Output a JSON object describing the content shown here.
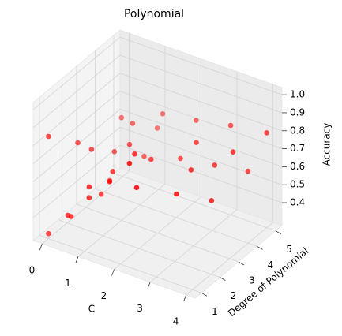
{
  "chart_data": {
    "type": "scatter3d",
    "title": "Polynomial",
    "x_label": "C",
    "y_label": "Degree of Polynomial",
    "z_label": "Accuracy",
    "color": "red",
    "x": [
      0,
      0,
      0.3,
      0.54,
      0.63,
      0.68,
      1.13,
      1.13,
      0.95,
      0.67,
      1.7,
      1.27,
      0.8,
      0.48,
      0.79,
      1.22,
      1.88,
      2.25,
      1.11,
      1.82,
      2.45,
      0.96,
      1.11,
      2.12,
      3.04,
      2.93,
      2.56,
      2.04,
      3.5,
      3.07,
      3.58,
      3.0,
      3.48,
      4.0
    ],
    "y": [
      1,
      1,
      2,
      1,
      1,
      2,
      1,
      1,
      2,
      3,
      1,
      2,
      3,
      4,
      4,
      3,
      2,
      1,
      4,
      3,
      1,
      5,
      5,
      4,
      2,
      3,
      4,
      5,
      3,
      4,
      4,
      5,
      5,
      5
    ],
    "z": [
      0.84,
      0.3,
      0.74,
      0.44,
      0.44,
      0.73,
      0.64,
      0.58,
      0.5,
      0.47,
      0.71,
      0.65,
      0.64,
      0.72,
      0.71,
      0.71,
      0.79,
      0.85,
      0.55,
      0.67,
      0.73,
      0.61,
      0.7,
      0.61,
      0.65,
      0.69,
      0.73,
      0.73,
      0.56,
      0.64,
      0.75,
      0.77,
      0.55,
      0.8
    ],
    "xlim": [
      -0.25,
      4.25
    ],
    "ylim": [
      0.66,
      5.34
    ],
    "zlim": [
      0.273,
      1.04
    ],
    "xticks": [
      0,
      1,
      2,
      3,
      4
    ],
    "yticks": [
      1,
      2,
      3,
      4,
      5
    ],
    "zticks": [
      0.4,
      0.5,
      0.6,
      0.7,
      0.8,
      0.9,
      {
        "value": 1,
        "label": "1.0"
      }
    ],
    "grid": true
  }
}
